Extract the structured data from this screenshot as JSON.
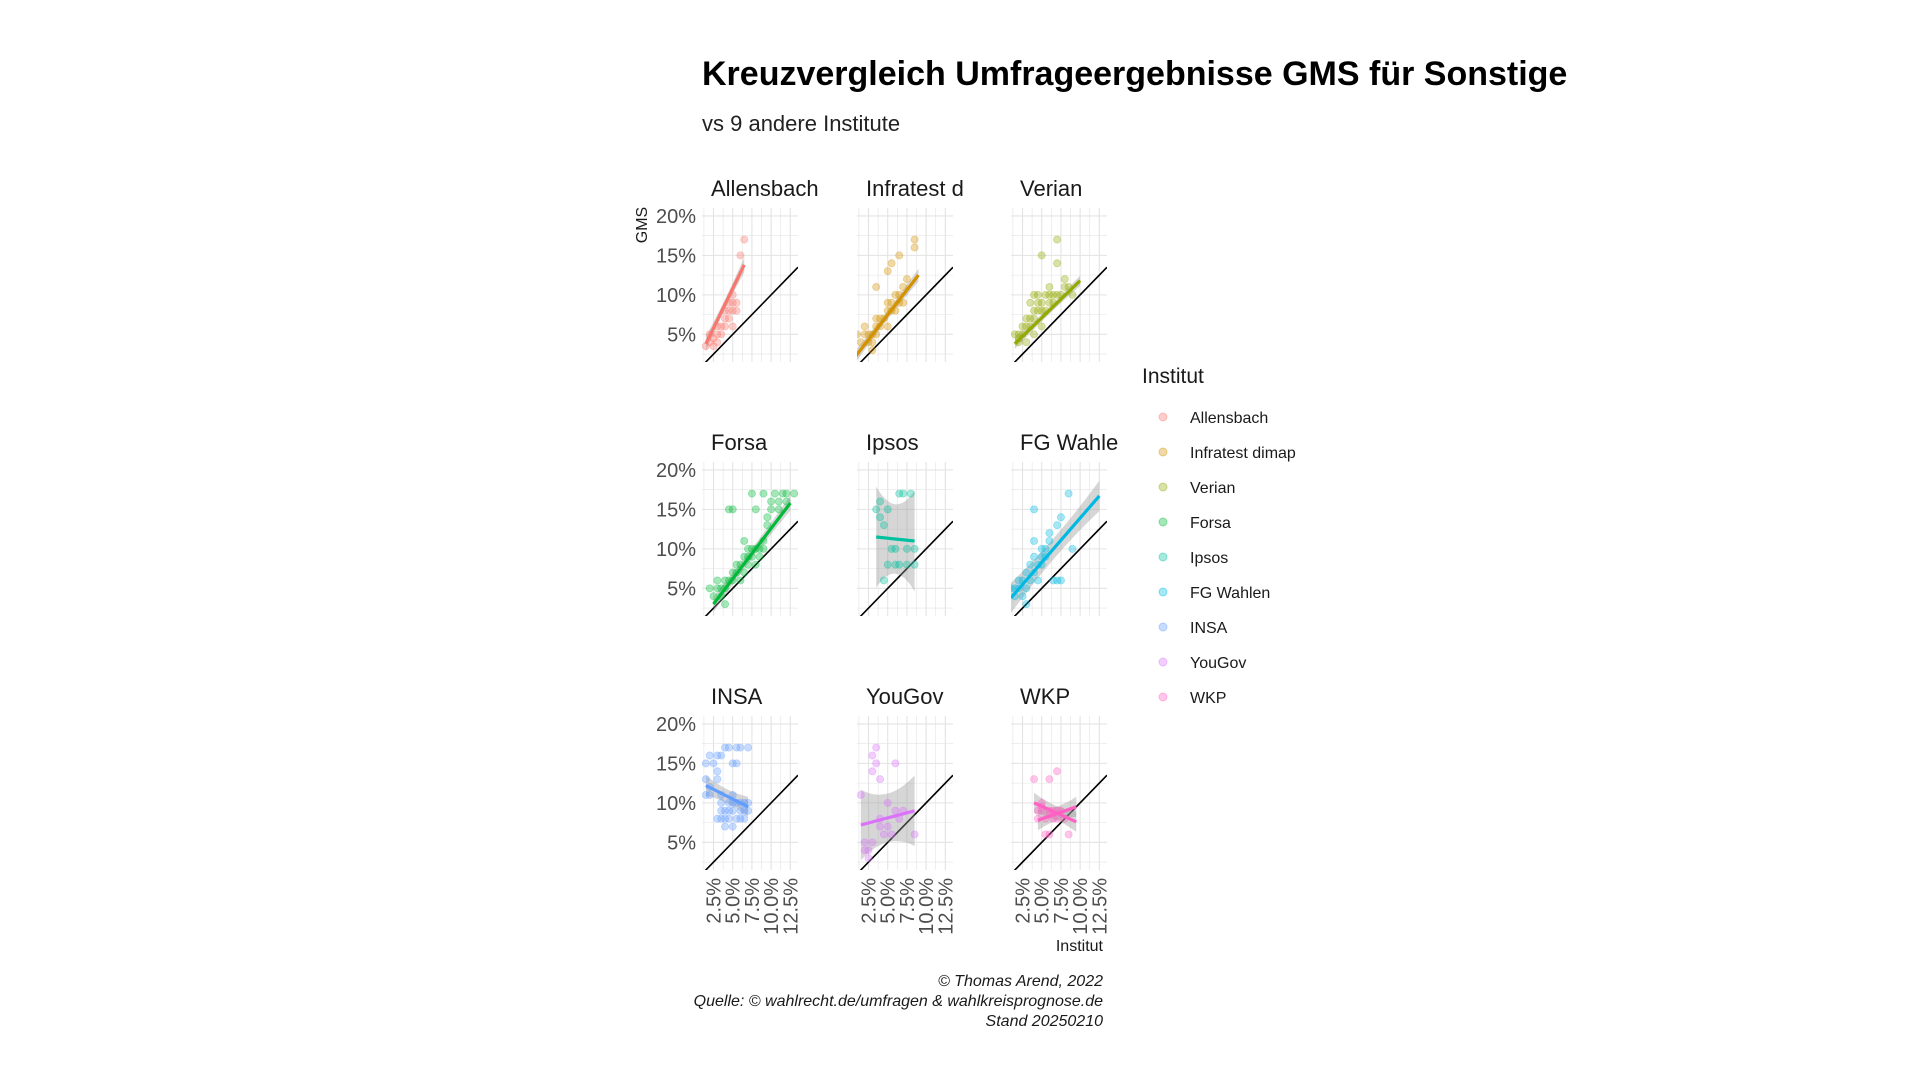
{
  "chart_data": {
    "type": "scatter",
    "title": "Kreuzvergleich Umfrageergebnisse GMS für Sonstige",
    "subtitle": "vs 9 andere Institute",
    "xlabel": "Institut",
    "ylabel": "GMS",
    "xlim": [
      1.0,
      13.5
    ],
    "ylim": [
      1.5,
      21.0
    ],
    "x_ticks": [
      "2.5%",
      "5.0%",
      "7.5%",
      "10.0%",
      "12.5%"
    ],
    "x_tick_values": [
      2.5,
      5.0,
      7.5,
      10.0,
      12.5
    ],
    "y_ticks": [
      "5%",
      "10%",
      "15%",
      "20%"
    ],
    "y_tick_values": [
      5,
      10,
      15,
      20
    ],
    "grid": true,
    "reference_line": "y = x",
    "legend": {
      "title": "Institut",
      "placement": "right",
      "entries": [
        "Allensbach",
        "Infratest dimap",
        "Verian",
        "Forsa",
        "Ipsos",
        "FG Wahlen",
        "INSA",
        "YouGov",
        "WKP"
      ]
    },
    "panels": [
      {
        "name": "Allensbach",
        "strip_label": "Allensbach",
        "color": "#F8766D",
        "fit": [
          [
            1.5,
            3.8
          ],
          [
            6.5,
            13.8
          ]
        ],
        "ribbon": 0.6,
        "points": [
          [
            1.5,
            3.5
          ],
          [
            2,
            4
          ],
          [
            2,
            5
          ],
          [
            2.5,
            3.5
          ],
          [
            2.5,
            4.5
          ],
          [
            3,
            4
          ],
          [
            3,
            5
          ],
          [
            3,
            6
          ],
          [
            3.5,
            5
          ],
          [
            3.5,
            6
          ],
          [
            4,
            6
          ],
          [
            4,
            7
          ],
          [
            4,
            8
          ],
          [
            4.5,
            7
          ],
          [
            4.5,
            8
          ],
          [
            4.5,
            9
          ],
          [
            5,
            8
          ],
          [
            5,
            9
          ],
          [
            5,
            6
          ],
          [
            5.5,
            9
          ],
          [
            5.5,
            8
          ],
          [
            5,
            10
          ],
          [
            6,
            15
          ],
          [
            6.5,
            17
          ]
        ]
      },
      {
        "name": "Infratest dimap",
        "strip_label": "Infratest d",
        "color": "#D39200",
        "fit": [
          [
            0.8,
            2.2
          ],
          [
            9,
            12.5
          ]
        ],
        "ribbon": 0.5,
        "points": [
          [
            1,
            5
          ],
          [
            1.5,
            4
          ],
          [
            2,
            5
          ],
          [
            2,
            6
          ],
          [
            2.5,
            4
          ],
          [
            2.5,
            5
          ],
          [
            3,
            4
          ],
          [
            3,
            5
          ],
          [
            3,
            3
          ],
          [
            3.5,
            5
          ],
          [
            3.5,
            6
          ],
          [
            3.5,
            7
          ],
          [
            4,
            7
          ],
          [
            4,
            6
          ],
          [
            4.5,
            7
          ],
          [
            5,
            8
          ],
          [
            5,
            9
          ],
          [
            5,
            6
          ],
          [
            5.5,
            8
          ],
          [
            5.5,
            9
          ],
          [
            6,
            8
          ],
          [
            6,
            10
          ],
          [
            6.5,
            9
          ],
          [
            6.5,
            10
          ],
          [
            7,
            9
          ],
          [
            7,
            11
          ],
          [
            7.5,
            12
          ],
          [
            5,
            13
          ],
          [
            5.5,
            14
          ],
          [
            6.5,
            15
          ],
          [
            8.5,
            16
          ],
          [
            8.5,
            17
          ],
          [
            3.5,
            11
          ]
        ]
      },
      {
        "name": "Verian",
        "strip_label": "Verian",
        "color": "#93AA00",
        "fit": [
          [
            1.5,
            3.8
          ],
          [
            10,
            11.8
          ]
        ],
        "ribbon": 0.4,
        "points": [
          [
            1.5,
            5
          ],
          [
            2,
            4
          ],
          [
            2,
            5
          ],
          [
            2.5,
            5
          ],
          [
            2.5,
            6
          ],
          [
            3,
            6
          ],
          [
            3,
            7
          ],
          [
            3,
            4
          ],
          [
            3.5,
            6
          ],
          [
            3.5,
            7
          ],
          [
            4,
            7
          ],
          [
            4,
            8
          ],
          [
            4,
            5
          ],
          [
            4.5,
            8
          ],
          [
            4.5,
            9
          ],
          [
            5,
            8
          ],
          [
            5,
            9
          ],
          [
            5,
            6
          ],
          [
            5.5,
            8
          ],
          [
            5.5,
            10
          ],
          [
            6,
            9
          ],
          [
            6,
            10
          ],
          [
            6,
            11
          ],
          [
            6.5,
            9
          ],
          [
            6.5,
            10
          ],
          [
            7,
            10
          ],
          [
            7.5,
            10
          ],
          [
            8,
            11
          ],
          [
            8,
            12
          ],
          [
            8.5,
            11
          ],
          [
            9,
            10
          ],
          [
            2,
            4.5
          ],
          [
            5,
            15
          ],
          [
            7,
            14
          ],
          [
            7,
            17
          ],
          [
            3.5,
            9
          ],
          [
            4,
            10
          ],
          [
            4.5,
            10
          ]
        ]
      },
      {
        "name": "Forsa",
        "strip_label": "Forsa",
        "color": "#00BA38",
        "fit": [
          [
            2.5,
            3.0
          ],
          [
            12.5,
            15.8
          ]
        ],
        "ribbon": 0.6,
        "points": [
          [
            2,
            5
          ],
          [
            2.5,
            4
          ],
          [
            3,
            5
          ],
          [
            3,
            6
          ],
          [
            3.5,
            5
          ],
          [
            3.5,
            4
          ],
          [
            4,
            5
          ],
          [
            4,
            6
          ],
          [
            4,
            3
          ],
          [
            4.5,
            6
          ],
          [
            5,
            6
          ],
          [
            5,
            7
          ],
          [
            5.5,
            7
          ],
          [
            5.5,
            8
          ],
          [
            6,
            6
          ],
          [
            6,
            8
          ],
          [
            6.5,
            9
          ],
          [
            6.5,
            7
          ],
          [
            7,
            8
          ],
          [
            7,
            9
          ],
          [
            7,
            10
          ],
          [
            7.5,
            10
          ],
          [
            7.5,
            9
          ],
          [
            8,
            8
          ],
          [
            8,
            10
          ],
          [
            8.5,
            9
          ],
          [
            8.5,
            10
          ],
          [
            9,
            10
          ],
          [
            9,
            11
          ],
          [
            9.5,
            13
          ],
          [
            9.5,
            14
          ],
          [
            10,
            15
          ],
          [
            10,
            16
          ],
          [
            10.5,
            17
          ],
          [
            11,
            15
          ],
          [
            11,
            16
          ],
          [
            12,
            16
          ],
          [
            12,
            17
          ],
          [
            13,
            17
          ],
          [
            11.5,
            17
          ],
          [
            8,
            15
          ],
          [
            7.5,
            17
          ],
          [
            5,
            15
          ],
          [
            4.5,
            15
          ],
          [
            6.5,
            11
          ],
          [
            9,
            17
          ]
        ]
      },
      {
        "name": "Ipsos",
        "strip_label": "Ipsos",
        "color": "#00C19F",
        "fit": [
          [
            3.5,
            11.5
          ],
          [
            8.5,
            11.0
          ]
        ],
        "ribbon": 4.0,
        "points": [
          [
            3.5,
            15
          ],
          [
            4,
            14
          ],
          [
            4,
            16
          ],
          [
            4.5,
            13
          ],
          [
            5,
            8
          ],
          [
            5,
            15
          ],
          [
            5.5,
            10
          ],
          [
            6,
            8
          ],
          [
            6,
            10
          ],
          [
            6.5,
            8
          ],
          [
            7,
            17
          ],
          [
            7.5,
            10
          ],
          [
            7.5,
            8
          ],
          [
            8,
            17
          ],
          [
            8.5,
            10
          ],
          [
            8.5,
            8
          ],
          [
            4.5,
            6
          ],
          [
            6.5,
            17
          ]
        ]
      },
      {
        "name": "FG Wahlen",
        "strip_label": "FG Wahle",
        "color": "#00B9E3",
        "fit": [
          [
            1,
            3.8
          ],
          [
            12.5,
            16.7
          ]
        ],
        "ribbon": 1.2,
        "points": [
          [
            1,
            5
          ],
          [
            1.5,
            4
          ],
          [
            1.5,
            5
          ],
          [
            2,
            5
          ],
          [
            2,
            6
          ],
          [
            2.5,
            4
          ],
          [
            2.5,
            6
          ],
          [
            3,
            3
          ],
          [
            3,
            7
          ],
          [
            3,
            5
          ],
          [
            3.5,
            6
          ],
          [
            3.5,
            8
          ],
          [
            4,
            7
          ],
          [
            4,
            9
          ],
          [
            4,
            11
          ],
          [
            4,
            15
          ],
          [
            4.5,
            6
          ],
          [
            4.5,
            8
          ],
          [
            5,
            8
          ],
          [
            5,
            9
          ],
          [
            5,
            10
          ],
          [
            5.5,
            9
          ],
          [
            5.5,
            10
          ],
          [
            6,
            11
          ],
          [
            6,
            12
          ],
          [
            6.5,
            6
          ],
          [
            7,
            6
          ],
          [
            7,
            13
          ],
          [
            7.5,
            14
          ],
          [
            7.5,
            6
          ],
          [
            8.5,
            17
          ],
          [
            9,
            10
          ]
        ]
      },
      {
        "name": "INSA",
        "strip_label": "INSA",
        "color": "#619CFF",
        "fit": [
          [
            1.5,
            12.2
          ],
          [
            7,
            9.5
          ]
        ],
        "ribbon": 0.8,
        "points": [
          [
            1.5,
            11
          ],
          [
            1.5,
            13
          ],
          [
            1.5,
            15
          ],
          [
            2,
            11
          ],
          [
            2,
            12
          ],
          [
            2.5,
            15
          ],
          [
            3,
            14
          ],
          [
            3,
            13
          ],
          [
            3,
            8
          ],
          [
            3.5,
            16
          ],
          [
            3.5,
            8
          ],
          [
            3.5,
            9
          ],
          [
            3.5,
            10
          ],
          [
            4,
            7
          ],
          [
            4,
            8
          ],
          [
            4,
            9
          ],
          [
            4,
            17
          ],
          [
            4.5,
            17
          ],
          [
            4.5,
            8
          ],
          [
            4.5,
            9
          ],
          [
            4.5,
            10
          ],
          [
            5,
            9
          ],
          [
            5,
            10
          ],
          [
            5,
            15
          ],
          [
            5,
            7
          ],
          [
            5.5,
            8
          ],
          [
            5.5,
            10
          ],
          [
            5.5,
            15
          ],
          [
            5.5,
            17
          ],
          [
            6,
            9
          ],
          [
            6,
            10
          ],
          [
            6,
            8
          ],
          [
            6,
            17
          ],
          [
            6.5,
            9
          ],
          [
            6.5,
            10
          ],
          [
            7,
            9
          ],
          [
            7,
            10
          ],
          [
            6.5,
            8
          ],
          [
            3,
            16
          ],
          [
            2,
            16
          ],
          [
            3.5,
            11
          ],
          [
            5,
            11
          ],
          [
            7,
            17
          ]
        ]
      },
      {
        "name": "YouGov",
        "strip_label": "YouGov",
        "color": "#DB72FB",
        "fit": [
          [
            1.5,
            7.2
          ],
          [
            8.5,
            9.0
          ]
        ],
        "ribbon": 2.8,
        "points": [
          [
            1.5,
            11
          ],
          [
            2,
            4
          ],
          [
            2,
            5
          ],
          [
            2.5,
            3
          ],
          [
            2.5,
            4
          ],
          [
            3,
            5
          ],
          [
            3,
            14
          ],
          [
            3,
            16
          ],
          [
            3.5,
            15
          ],
          [
            3.5,
            17
          ],
          [
            4,
            13
          ],
          [
            4,
            7
          ],
          [
            4,
            8
          ],
          [
            4.5,
            6
          ],
          [
            5,
            7
          ],
          [
            5,
            10
          ],
          [
            5.5,
            6
          ],
          [
            6,
            15
          ],
          [
            6,
            9
          ],
          [
            6.5,
            8
          ],
          [
            7,
            9
          ],
          [
            8.5,
            6
          ]
        ]
      },
      {
        "name": "WKP",
        "strip_label": "WKP",
        "color": "#FF61C3",
        "fit": [
          [
            4,
            10.0
          ],
          [
            9.5,
            7.6
          ]
        ],
        "fit2": [
          [
            4.5,
            7.8
          ],
          [
            9.5,
            9.5
          ]
        ],
        "ribbon": 0.8,
        "points": [
          [
            4,
            13
          ],
          [
            4.5,
            9
          ],
          [
            4.5,
            8
          ],
          [
            5,
            10
          ],
          [
            5,
            9
          ],
          [
            5.5,
            8
          ],
          [
            5.5,
            6
          ],
          [
            6,
            9
          ],
          [
            6,
            13
          ],
          [
            6,
            6
          ],
          [
            6.5,
            8
          ],
          [
            6.5,
            9
          ],
          [
            7,
            14
          ],
          [
            7,
            8
          ],
          [
            7.5,
            9
          ],
          [
            8,
            8
          ],
          [
            8.5,
            6
          ],
          [
            5,
            9.5
          ],
          [
            6,
            8.5
          ],
          [
            7,
            9
          ]
        ]
      }
    ],
    "caption": [
      "© Thomas Arend, 2022",
      "Quelle: © wahlrecht.de/umfragen & wahlkreisprognose.de",
      "Stand 20250210"
    ]
  }
}
